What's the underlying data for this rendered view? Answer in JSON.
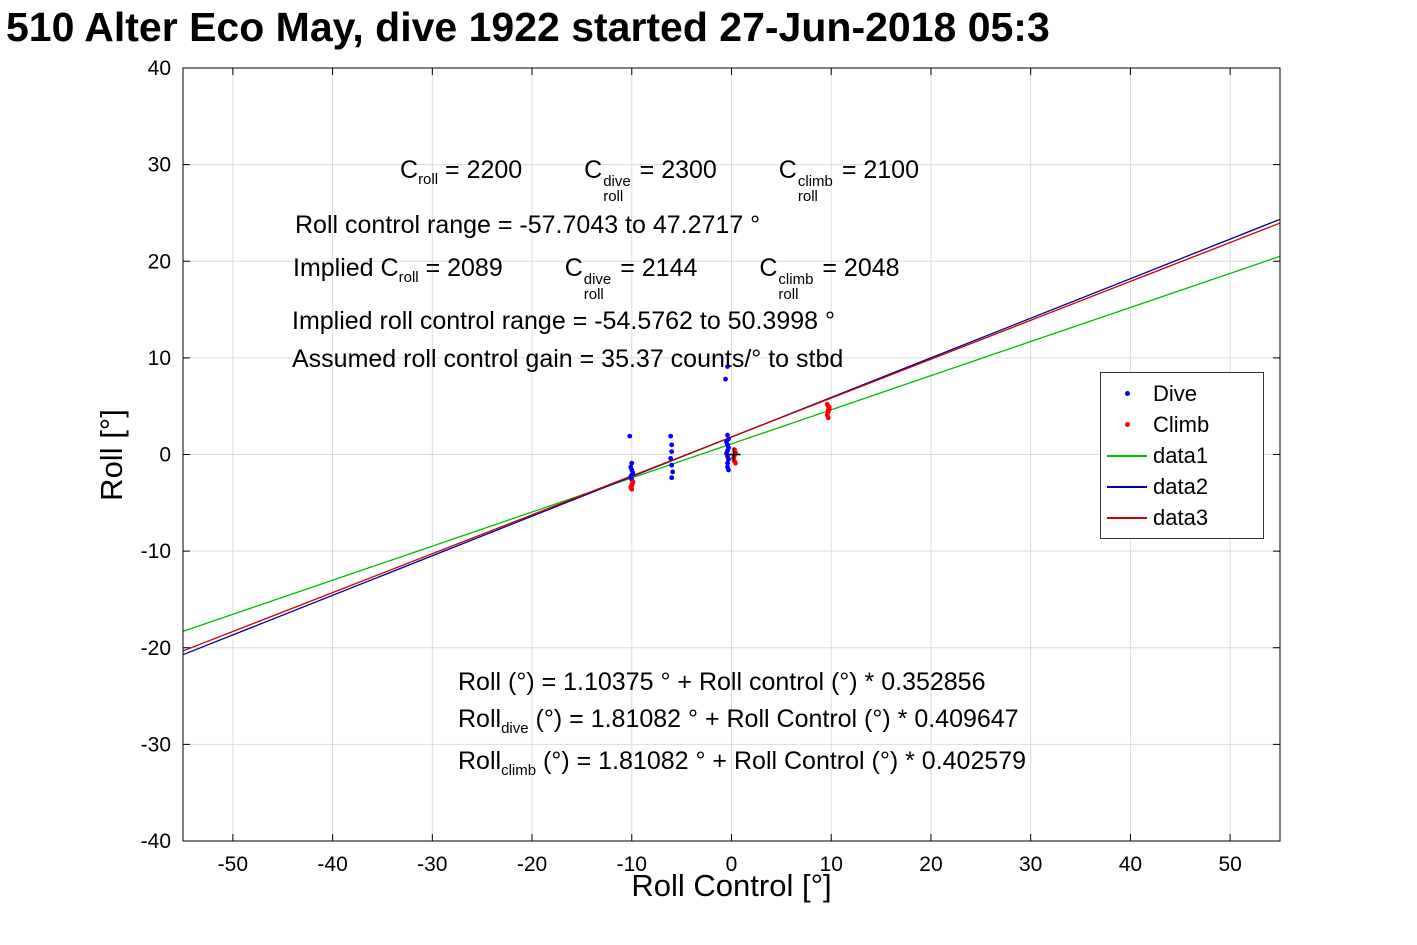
{
  "chart_data": {
    "type": "scatter",
    "title": "510 Alter Eco May, dive 1922 started 27-Jun-2018 05:3",
    "xlabel": "Roll Control [°]",
    "ylabel": "Roll [°]",
    "xlim": [
      -55,
      55
    ],
    "ylim": [
      -40,
      40
    ],
    "xticks": [
      -50,
      -40,
      -30,
      -20,
      -10,
      0,
      10,
      20,
      30,
      40,
      50
    ],
    "yticks": [
      -40,
      -30,
      -20,
      -10,
      0,
      10,
      20,
      30,
      40
    ],
    "grid": true,
    "legend_position": "right-inside",
    "series": [
      {
        "name": "Dive",
        "plot": "scatter",
        "color": "#0000ff",
        "points": [
          [
            -10.2,
            1.9
          ],
          [
            -10,
            -0.9
          ],
          [
            -10.1,
            -1.3
          ],
          [
            -10,
            -1.6
          ],
          [
            -9.9,
            -1.9
          ],
          [
            -10,
            -2.1
          ],
          [
            -10.1,
            -2.3
          ],
          [
            -10,
            -2.6
          ],
          [
            -9.9,
            -2.9
          ],
          [
            -10,
            -3.2
          ],
          [
            -6.1,
            1.9
          ],
          [
            -6,
            1.0
          ],
          [
            -6,
            0.3
          ],
          [
            -6.1,
            -0.4
          ],
          [
            -6,
            -1.1
          ],
          [
            -5.9,
            -1.8
          ],
          [
            -6,
            -2.4
          ],
          [
            -0.4,
            9.1
          ],
          [
            -0.6,
            7.8
          ],
          [
            -0.4,
            2.0
          ],
          [
            -0.3,
            1.6
          ],
          [
            -0.5,
            1.3
          ],
          [
            -0.4,
            1.0
          ],
          [
            -0.3,
            0.7
          ],
          [
            -0.4,
            0.4
          ],
          [
            -0.5,
            0.1
          ],
          [
            -0.4,
            -0.2
          ],
          [
            -0.3,
            -0.5
          ],
          [
            -0.4,
            -0.9
          ],
          [
            -0.4,
            -1.3
          ],
          [
            -0.3,
            -1.6
          ]
        ]
      },
      {
        "name": "Climb",
        "plot": "scatter",
        "color": "#ff0000",
        "points": [
          [
            -9.9,
            -2.8
          ],
          [
            -10,
            -3.1
          ],
          [
            -10.1,
            -3.4
          ],
          [
            -10,
            -3.6
          ],
          [
            0.3,
            0.5
          ],
          [
            0.4,
            0.2
          ],
          [
            0.3,
            -0.1
          ],
          [
            0.2,
            -0.4
          ],
          [
            0.3,
            -0.7
          ],
          [
            0.4,
            -0.9
          ],
          [
            9.6,
            5.2
          ],
          [
            9.7,
            5.0
          ],
          [
            9.8,
            4.7
          ],
          [
            9.7,
            4.4
          ],
          [
            9.6,
            4.1
          ],
          [
            9.7,
            3.8
          ],
          [
            9.8,
            4.9
          ],
          [
            9.7,
            4.6
          ]
        ]
      },
      {
        "name": "data1",
        "plot": "line",
        "color": "#00bb00",
        "intercept": 1.10375,
        "slope": 0.352856,
        "x_range": [
          -55,
          55
        ]
      },
      {
        "name": "data2",
        "plot": "line",
        "color": "#000099",
        "intercept": 1.81082,
        "slope": 0.409647,
        "x_range": [
          -55,
          55
        ]
      },
      {
        "name": "data3",
        "plot": "line",
        "color": "#cc0000",
        "intercept": 1.81082,
        "slope": 0.402579,
        "x_range": [
          -55,
          55
        ]
      }
    ],
    "extra_marker": {
      "shape": "plus",
      "x": 0.2,
      "y": 0,
      "color": "#000000"
    }
  },
  "annotations": {
    "coeff_line": {
      "c1": {
        "base": "C",
        "sub": "roll",
        "eq": " = 2200"
      },
      "c2": {
        "base": "C",
        "sub": "roll",
        "sup": "dive",
        "eq": " = 2300"
      },
      "c3": {
        "base": "C",
        "sub": "roll",
        "sup": "climb",
        "eq": " = 2100"
      }
    },
    "range_line": "Roll control range = -57.7043 to 47.2717 °",
    "implied_line": {
      "prefix": "Implied ",
      "c1": {
        "base": "C",
        "sub": "roll",
        "eq": " = 2089"
      },
      "c2": {
        "base": "C",
        "sub": "roll",
        "sup": "dive",
        "eq": " = 2144"
      },
      "c3": {
        "base": "C",
        "sub": "roll",
        "sup": "climb",
        "eq": " = 2048"
      }
    },
    "implied_range_line": "Implied roll control range = -54.5762 to 50.3998 °",
    "gain_line": "Assumed roll control gain = 35.37 counts/° to stbd",
    "fit_all": "Roll (°) = 1.10375 ° + Roll control (°) * 0.352856",
    "fit_dive": {
      "base": "Roll",
      "sub": "dive",
      "eq": " (°) = 1.81082 ° + Roll Control (°) * 0.409647"
    },
    "fit_climb": {
      "base": "Roll",
      "sub": "climb",
      "eq": " (°) = 1.81082 ° + Roll Control (°) * 0.402579"
    }
  }
}
